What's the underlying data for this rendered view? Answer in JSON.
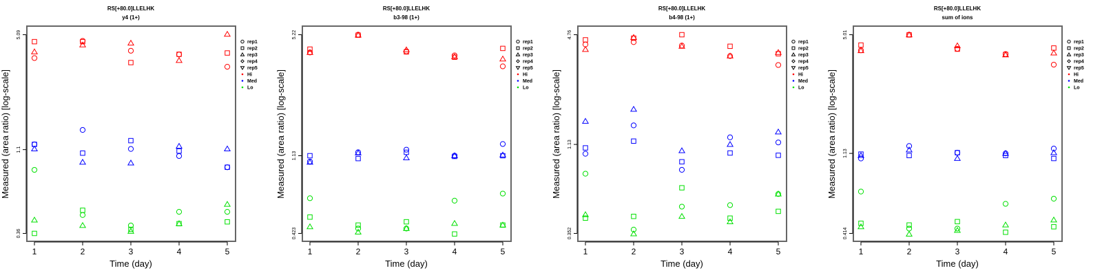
{
  "chart_data": [
    {
      "type": "scatter",
      "title": "RS[+80.0]LLELHK",
      "subtitle": "y4 (1+)",
      "xlabel": "Time (day)",
      "ylabel": "Measured (area ratio) [log-scale]",
      "yscale": "log",
      "x": [
        1,
        2,
        3,
        4,
        5
      ],
      "ylim": [
        0.36,
        5.09
      ],
      "yticks": [
        "0.36",
        "1.1",
        "5.09"
      ],
      "ytick_values": [
        0.36,
        1.1,
        5.09
      ],
      "series": [
        {
          "name": "Hi",
          "color": "#ff0000",
          "reps": {
            "rep1": [
              3.73,
              4.69,
              4.11,
              3.91,
              3.32
            ],
            "rep2": [
              4.64,
              4.64,
              3.51,
              3.92,
              3.99
            ],
            "rep3": [
              4.05,
              4.44,
              4.55,
              3.61,
              5.12
            ]
          }
        },
        {
          "name": "Med",
          "color": "#0000ff",
          "reps": {
            "rep1": [
              1.18,
              1.43,
              1.11,
              1.01,
              0.87
            ],
            "rep2": [
              1.18,
              1.05,
              1.24,
              1.08,
              0.87
            ],
            "rep3": [
              1.11,
              0.93,
              0.92,
              1.15,
              1.11
            ]
          }
        },
        {
          "name": "Lo",
          "color": "#00e000",
          "reps": {
            "rep1": [
              0.84,
              0.46,
              0.4,
              0.48,
              0.48
            ],
            "rep2": [
              0.36,
              0.49,
              0.38,
              0.41,
              0.42
            ],
            "rep3": [
              0.43,
              0.4,
              0.37,
              0.41,
              0.53
            ]
          }
        }
      ]
    },
    {
      "type": "scatter",
      "title": "RS[+80.0]LLELHK",
      "subtitle": "b3-98 (1+)",
      "xlabel": "Time (day)",
      "ylabel": "Measured (area ratio) [log-scale]",
      "yscale": "log",
      "x": [
        1,
        2,
        3,
        4,
        5
      ],
      "ylim": [
        0.423,
        5.22
      ],
      "yticks": [
        "0.423",
        "1.13",
        "5.22"
      ],
      "ytick_values": [
        0.423,
        1.13,
        5.22
      ],
      "series": [
        {
          "name": "Hi",
          "color": "#ff0000",
          "reps": {
            "rep1": [
              4.17,
              5.22,
              4.23,
              4.02,
              3.5
            ],
            "rep2": [
              4.35,
              5.19,
              4.2,
              3.93,
              4.39
            ],
            "rep3": [
              4.17,
              5.19,
              4.31,
              3.95,
              3.84
            ]
          }
        },
        {
          "name": "Med",
          "color": "#0000ff",
          "reps": {
            "rep1": [
              1.05,
              1.18,
              1.22,
              1.13,
              1.31
            ],
            "rep2": [
              1.13,
              1.09,
              1.18,
              1.12,
              1.13
            ],
            "rep3": [
              1.04,
              1.17,
              1.1,
              1.13,
              1.14
            ]
          }
        },
        {
          "name": "Lo",
          "color": "#00e000",
          "reps": {
            "rep1": [
              0.66,
              0.45,
              0.45,
              0.64,
              0.7
            ],
            "rep2": [
              0.52,
              0.47,
              0.49,
              0.42,
              0.47
            ],
            "rep3": [
              0.46,
              0.43,
              0.45,
              0.48,
              0.47
            ]
          }
        }
      ]
    },
    {
      "type": "scatter",
      "title": "RS[+80.0]LLELHK",
      "subtitle": "b4-98 (1+)",
      "xlabel": "Time (day)",
      "ylabel": "Measured (area ratio) [log-scale]",
      "yscale": "log",
      "x": [
        1,
        2,
        3,
        4,
        5
      ],
      "ylim": [
        0.352,
        4.76
      ],
      "yticks": [
        "0.352",
        "1.13",
        "4.76"
      ],
      "ytick_values": [
        0.352,
        1.13,
        4.76
      ],
      "series": [
        {
          "name": "Hi",
          "color": "#ff0000",
          "reps": {
            "rep1": [
              4.19,
              4.32,
              4.13,
              3.6,
              3.2
            ],
            "rep2": [
              4.45,
              4.55,
              4.76,
              4.09,
              3.71
            ],
            "rep3": [
              3.92,
              4.59,
              4.09,
              3.6,
              3.77
            ]
          }
        },
        {
          "name": "Med",
          "color": "#0000ff",
          "reps": {
            "rep1": [
              1.0,
              1.45,
              0.81,
              1.24,
              1.16
            ],
            "rep2": [
              1.08,
              1.18,
              0.9,
              1.01,
              0.98
            ],
            "rep3": [
              1.53,
              1.79,
              1.04,
              1.13,
              1.33
            ]
          }
        },
        {
          "name": "Lo",
          "color": "#00e000",
          "reps": {
            "rep1": [
              0.77,
              0.37,
              0.5,
              0.51,
              0.59
            ],
            "rep2": [
              0.43,
              0.44,
              0.64,
              0.43,
              0.47
            ],
            "rep3": [
              0.45,
              0.35,
              0.44,
              0.41,
              0.59
            ]
          }
        }
      ]
    },
    {
      "type": "scatter",
      "title": "RS[+80.0]LLELHK",
      "subtitle": "sum of ions",
      "xlabel": "Time (day)",
      "ylabel": "Measured (area ratio) [log-scale]",
      "yscale": "log",
      "x": [
        1,
        2,
        3,
        4,
        5
      ],
      "ylim": [
        0.414,
        5.01
      ],
      "yticks": [
        "0.414",
        "1.13",
        "5.01"
      ],
      "ytick_values": [
        0.414,
        1.13,
        5.01
      ],
      "series": [
        {
          "name": "Hi",
          "color": "#ff0000",
          "reps": {
            "rep1": [
              4.12,
              5.01,
              4.2,
              3.93,
              3.44
            ],
            "rep2": [
              4.4,
              5.0,
              4.18,
              3.91,
              4.24
            ],
            "rep3": [
              4.1,
              5.0,
              4.36,
              3.89,
              3.98
            ]
          }
        },
        {
          "name": "Med",
          "color": "#0000ff",
          "reps": {
            "rep1": [
              1.06,
              1.24,
              1.14,
              1.13,
              1.2
            ],
            "rep2": [
              1.12,
              1.1,
              1.14,
              1.1,
              1.06
            ],
            "rep3": [
              1.1,
              1.18,
              1.06,
              1.13,
              1.14
            ]
          }
        },
        {
          "name": "Lo",
          "color": "#00e000",
          "reps": {
            "rep1": [
              0.7,
              0.44,
              0.44,
              0.6,
              0.64
            ],
            "rep2": [
              0.47,
              0.46,
              0.48,
              0.42,
              0.45
            ],
            "rep3": [
              0.45,
              0.41,
              0.43,
              0.46,
              0.49
            ]
          }
        }
      ]
    }
  ],
  "legend": {
    "placement": "right",
    "reps": [
      {
        "label": "rep1",
        "symbol": "circle"
      },
      {
        "label": "rep2",
        "symbol": "square"
      },
      {
        "label": "rep3",
        "symbol": "triangle-up"
      },
      {
        "label": "rep4",
        "symbol": "diamond"
      },
      {
        "label": "rep5",
        "symbol": "triangle-down"
      }
    ],
    "groups": [
      {
        "label": "Hi",
        "color": "#ff0000"
      },
      {
        "label": "Med",
        "color": "#0000ff"
      },
      {
        "label": "Lo",
        "color": "#00e000"
      }
    ]
  }
}
